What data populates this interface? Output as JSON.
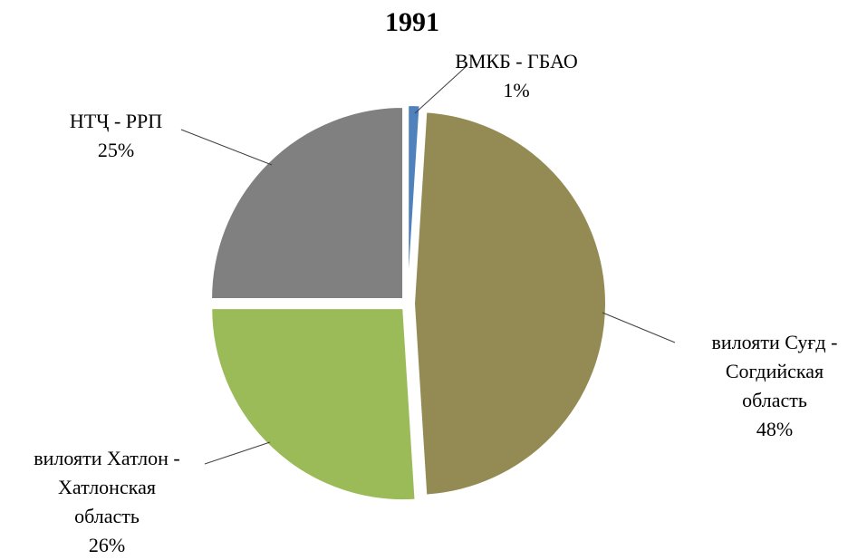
{
  "chart_data": {
    "type": "pie",
    "title": "1991",
    "categories": [
      "ВМКБ - ГБАО",
      "вилояти Суғд - Согдийская область",
      "вилояти Хатлон - Хатлонская область",
      "НТҶ - РРП"
    ],
    "values": [
      1,
      48,
      26,
      25
    ],
    "value_labels": [
      "1%",
      "48%",
      "26%",
      "25%"
    ],
    "colors": [
      "#4f81bd",
      "#948a54",
      "#9bbb59",
      "#808080"
    ]
  }
}
